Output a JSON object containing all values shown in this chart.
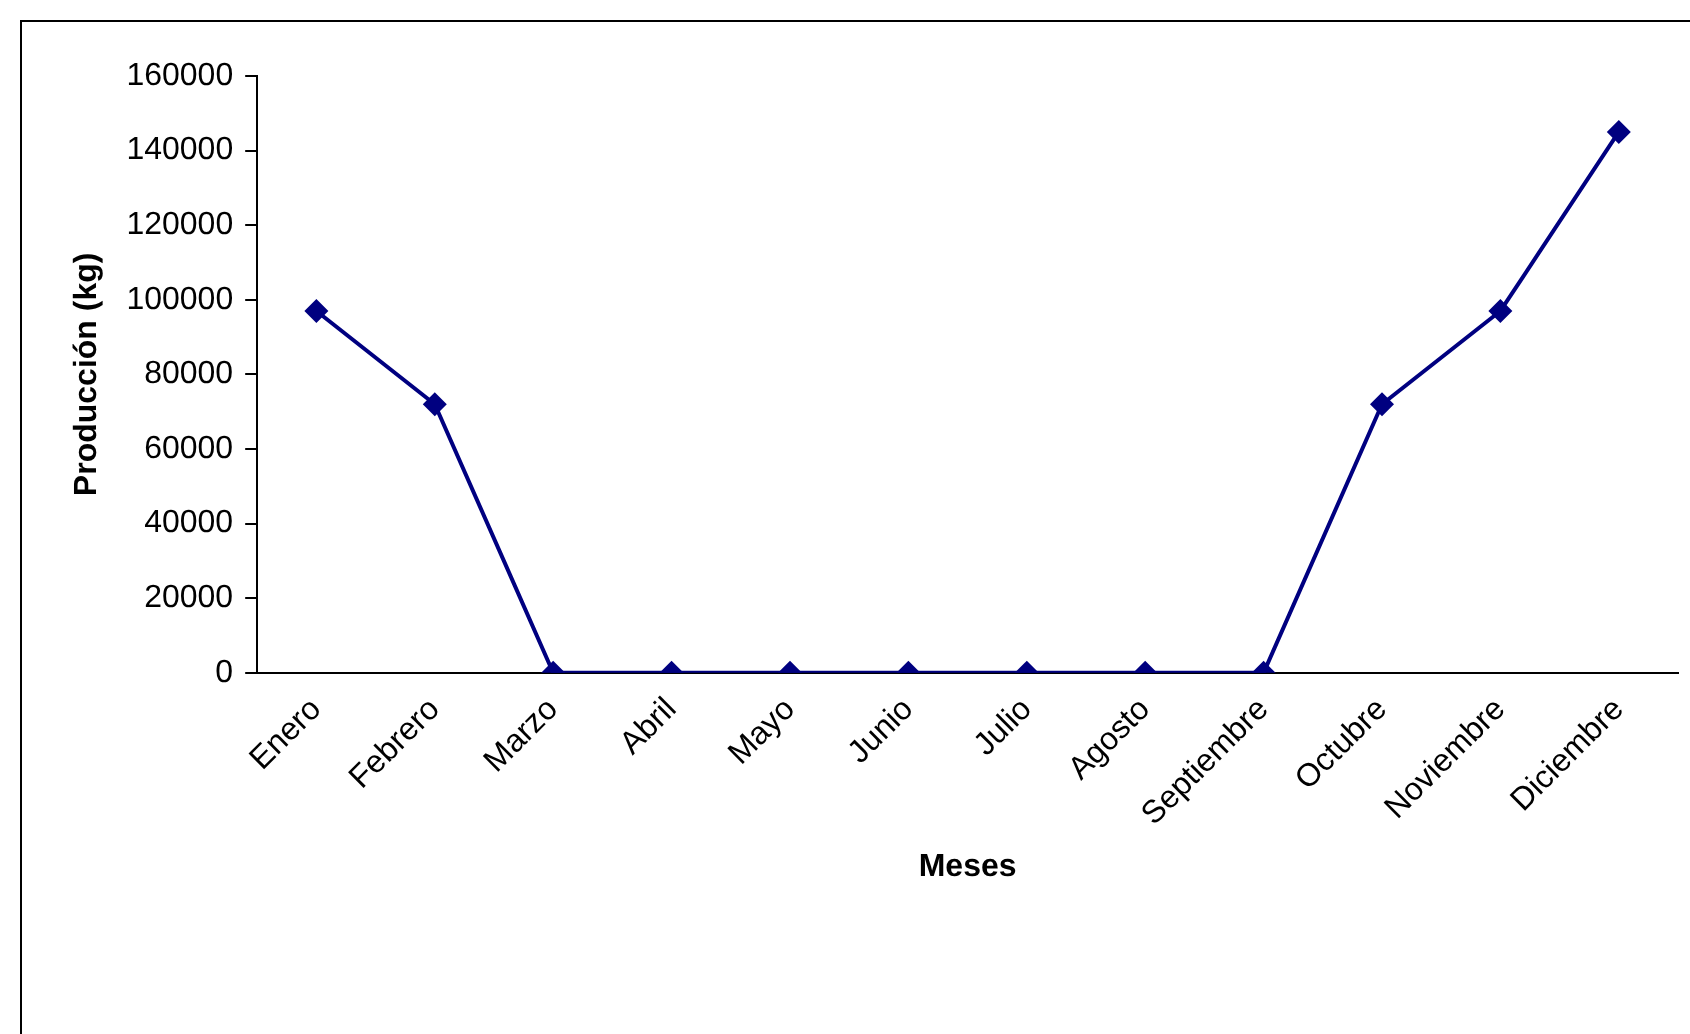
{
  "chart_data": {
    "type": "line",
    "xlabel": "Meses",
    "ylabel": "Producción (kg)",
    "categories": [
      "Enero",
      "Febrero",
      "Marzo",
      "Abril",
      "Mayo",
      "Junio",
      "Julio",
      "Agosto",
      "Septiembre",
      "Octubre",
      "Noviembre",
      "Diciembre"
    ],
    "series": [
      {
        "color": "#000080",
        "values": [
          97000,
          72000,
          0,
          0,
          0,
          0,
          0,
          0,
          0,
          72000,
          97000,
          145000
        ]
      }
    ],
    "ylim": [
      0,
      160000
    ],
    "yticks": [
      0,
      20000,
      40000,
      60000,
      80000,
      100000,
      120000,
      140000,
      160000
    ],
    "grid": false,
    "legend": false,
    "marker": "diamond",
    "line_style": "solid"
  }
}
